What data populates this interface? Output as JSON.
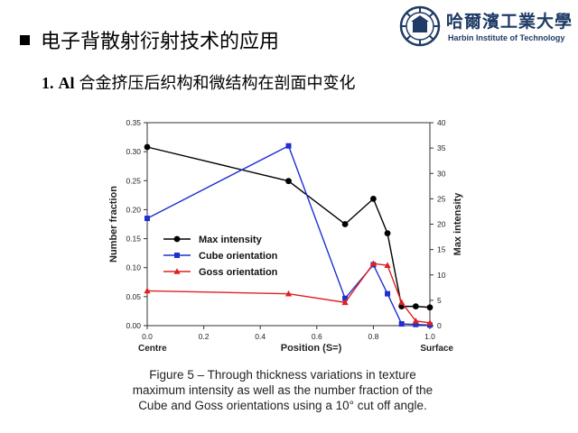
{
  "slide": {
    "title": "电子背散射衍射技术的应用",
    "subtitle_number": "1.",
    "subtitle_prefix": "Al",
    "subtitle_text": "合金挤压后织构和微结构在剖面中变化"
  },
  "logo": {
    "name_cn": "哈爾濱工業大學",
    "name_en": "Harbin Institute of Technology",
    "emblem": "hit-emblem-icon",
    "color": "#1f3b66"
  },
  "caption_lines": [
    "Figure 5 – Through thickness variations in texture",
    "maximum intensity as well as the number fraction of the",
    "Cube and Goss orientations using a 10° cut off angle."
  ],
  "chart_data": {
    "type": "line",
    "xlabel": "Position (S=)",
    "ylabel": "Number fraction",
    "y2label": "Max intensity",
    "xlim": [
      0.0,
      1.0
    ],
    "ylim": [
      0.0,
      0.35
    ],
    "y2lim": [
      0,
      40
    ],
    "x_ticks": [
      "0.0",
      "0.2",
      "0.4",
      "0.6",
      "0.8",
      "1.0"
    ],
    "y_ticks": [
      "0.00",
      "0.05",
      "0.10",
      "0.15",
      "0.20",
      "0.25",
      "0.30",
      "0.35"
    ],
    "y2_ticks": [
      "0",
      "5",
      "10",
      "15",
      "20",
      "25",
      "30",
      "35",
      "40"
    ],
    "x_annotations": {
      "left": "Centre",
      "right": "Surface"
    },
    "grid": false,
    "legend_position": "middle-left",
    "series": [
      {
        "name": "Max intensity",
        "axis": "right",
        "color": "#000000",
        "marker": "circle",
        "x": [
          0.0,
          0.5,
          0.7,
          0.8,
          0.85,
          0.9,
          0.95,
          1.0
        ],
        "y": [
          35.2,
          28.5,
          20.0,
          25.0,
          18.2,
          3.8,
          3.8,
          3.6
        ]
      },
      {
        "name": "Cube orientation",
        "axis": "left",
        "color": "#1f2fd0",
        "marker": "square",
        "x": [
          0.0,
          0.5,
          0.7,
          0.8,
          0.85,
          0.9,
          0.95,
          1.0
        ],
        "y": [
          0.185,
          0.31,
          0.047,
          0.105,
          0.055,
          0.003,
          0.002,
          0.001
        ]
      },
      {
        "name": "Goss orientation",
        "axis": "left",
        "color": "#e02020",
        "marker": "triangle",
        "x": [
          0.0,
          0.5,
          0.7,
          0.8,
          0.85,
          0.9,
          0.95,
          1.0
        ],
        "y": [
          0.06,
          0.055,
          0.04,
          0.107,
          0.104,
          0.04,
          0.008,
          0.005
        ]
      }
    ]
  }
}
